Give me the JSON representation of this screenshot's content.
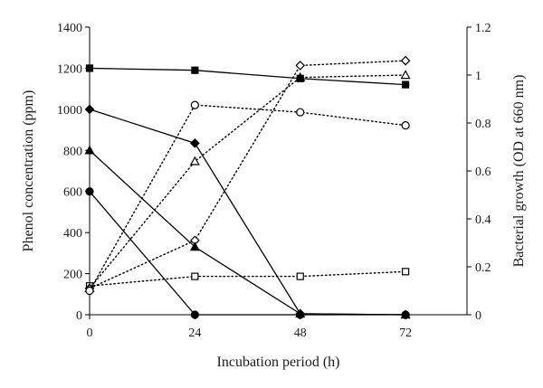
{
  "chart_data": {
    "type": "line",
    "xlabel": "Incubation period (h)",
    "ylabel": "Phenol concentration (ppm)",
    "y2label": "Bacterial growth (OD at 660 nm)",
    "xlim": [
      0,
      86
    ],
    "ylim": [
      0,
      1400
    ],
    "y2lim": [
      0,
      1.2
    ],
    "x_ticks": [
      0,
      24,
      48,
      72
    ],
    "y_ticks": [
      0,
      200,
      400,
      600,
      800,
      1000,
      1200,
      1400
    ],
    "y2_ticks": [
      0,
      0.2,
      0.4,
      0.6,
      0.8,
      1,
      1.2
    ],
    "x_tick_labels": [
      "0",
      "24",
      "48",
      "72"
    ],
    "y_tick_labels": [
      "0",
      "200",
      "400",
      "600",
      "800",
      "1000",
      "1200",
      "1400"
    ],
    "y2_tick_labels": [
      "0",
      "0.2",
      "0.4",
      "0.6",
      "0.8",
      "1",
      "1.2"
    ],
    "grid": false,
    "x": [
      0,
      24,
      48,
      72
    ],
    "series": [
      {
        "axis": "left",
        "marker": "square",
        "filled": true,
        "line": "solid",
        "values": [
          1200,
          1190,
          1150,
          1120
        ]
      },
      {
        "axis": "left",
        "marker": "diamond",
        "filled": true,
        "line": "solid",
        "values": [
          1000,
          835,
          5,
          0
        ]
      },
      {
        "axis": "left",
        "marker": "triangle",
        "filled": true,
        "line": "solid",
        "values": [
          800,
          330,
          5,
          0
        ]
      },
      {
        "axis": "left",
        "marker": "circle",
        "filled": true,
        "line": "solid",
        "values": [
          600,
          0,
          0,
          0
        ]
      },
      {
        "axis": "right",
        "marker": "square",
        "filled": false,
        "line": "dotted",
        "values": [
          0.12,
          0.16,
          0.16,
          0.18
        ]
      },
      {
        "axis": "right",
        "marker": "diamond",
        "filled": false,
        "line": "dotted",
        "values": [
          0.11,
          0.31,
          1.04,
          1.06
        ]
      },
      {
        "axis": "right",
        "marker": "triangle",
        "filled": false,
        "line": "dotted",
        "values": [
          0.11,
          0.64,
          0.99,
          1.0
        ]
      },
      {
        "axis": "right",
        "marker": "circle",
        "filled": false,
        "line": "dotted",
        "values": [
          0.1,
          0.875,
          0.845,
          0.79
        ]
      }
    ],
    "colors": {
      "ink": "#000000",
      "background": "#ffffff"
    }
  }
}
